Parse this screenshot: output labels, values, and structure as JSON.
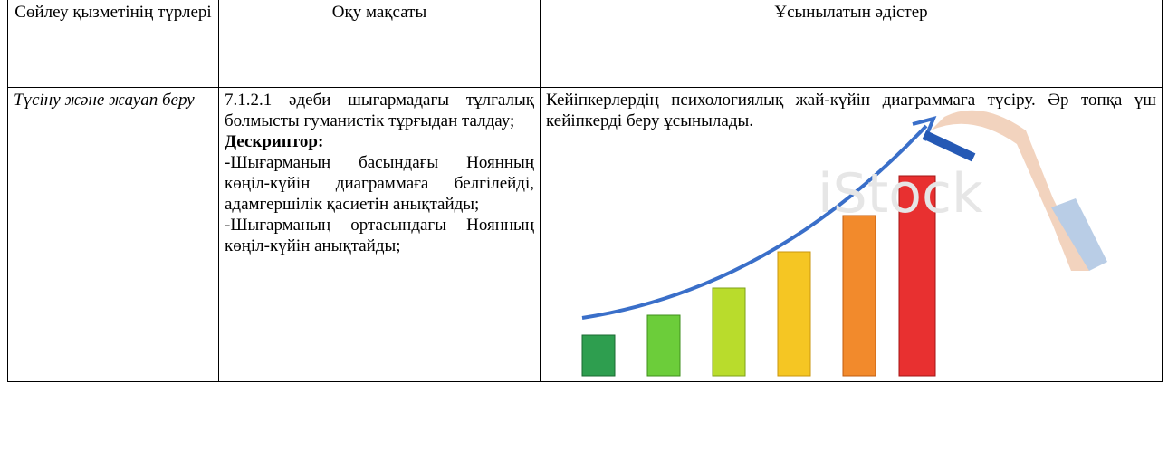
{
  "table": {
    "header": [
      "Сөйлеу қызметінің түрлері",
      "Оқу мақсаты",
      "Ұсынылатын әдістер"
    ],
    "rows": [
      {
        "activity": "Түсіну және жауап беру",
        "objective": "7.1.2.1 әдеби шығармадағы тұлғалық болмысты гуманистік тұрғыдан талдау;",
        "descriptor_title": "Дескриптор:",
        "descriptors": [
          "-Шығарманың басындағы Ноянның көңіл-күйін диаграммаға белгілейді, адамгершілік қасиетін анықтайды;",
          "-Шығарманың ортасындағы Ноянның көңіл-күйін анықтайды;"
        ],
        "method": "Кейіпкерлердің психологиялық жай-күйін диаграммаға түсіру. Әр топқа үш кейіпкерді беру ұсынылады.",
        "image_watermark": "iStock"
      }
    ]
  }
}
